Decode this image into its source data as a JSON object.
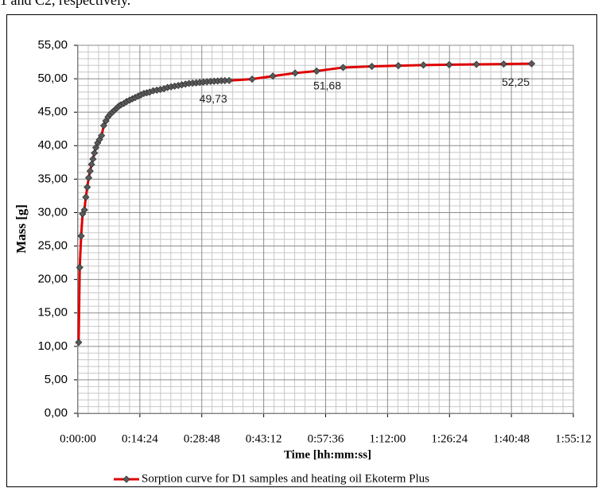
{
  "page_text": "1 and C2, respectively.",
  "chart_data": {
    "type": "line",
    "ylabel": "Mass [g]",
    "xlabel": "Time [hh:mm:ss]",
    "xlim": [
      0,
      6912
    ],
    "xticks": [
      {
        "value": 0,
        "label": "0:00:00"
      },
      {
        "value": 864,
        "label": "0:14:24"
      },
      {
        "value": 1728,
        "label": "0:28:48"
      },
      {
        "value": 2592,
        "label": "0:43:12"
      },
      {
        "value": 3456,
        "label": "0:57:36"
      },
      {
        "value": 4320,
        "label": "1:12:00"
      },
      {
        "value": 5184,
        "label": "1:26:24"
      },
      {
        "value": 6048,
        "label": "1:40:48"
      },
      {
        "value": 6912,
        "label": "1:55:12"
      }
    ],
    "ylim": [
      0,
      55
    ],
    "yticks": [
      {
        "value": 0,
        "label": "0,00"
      },
      {
        "value": 5,
        "label": "5,00"
      },
      {
        "value": 10,
        "label": "10,00"
      },
      {
        "value": 15,
        "label": "15,00"
      },
      {
        "value": 20,
        "label": "20,00"
      },
      {
        "value": 25,
        "label": "25,00"
      },
      {
        "value": 30,
        "label": "30,00"
      },
      {
        "value": 35,
        "label": "35,00"
      },
      {
        "value": 40,
        "label": "40,00"
      },
      {
        "value": 45,
        "label": "45,00"
      },
      {
        "value": 50,
        "label": "50,00"
      },
      {
        "value": 55,
        "label": "55,00"
      }
    ],
    "grid": true,
    "legend": "bottom",
    "x": [
      10,
      25,
      45,
      65,
      90,
      110,
      130,
      150,
      170,
      190,
      210,
      230,
      250,
      275,
      300,
      330,
      360,
      390,
      420,
      450,
      480,
      510,
      540,
      570,
      600,
      640,
      680,
      720,
      760,
      800,
      840,
      880,
      920,
      960,
      1000,
      1050,
      1100,
      1150,
      1200,
      1250,
      1300,
      1350,
      1400,
      1450,
      1500,
      1550,
      1600,
      1650,
      1700,
      1750,
      1800,
      1850,
      1900,
      1950,
      2000,
      2050,
      2110,
      2430,
      2720,
      3030,
      3330,
      3700,
      4100,
      4470,
      4820,
      5180,
      5560,
      5940,
      6330
    ],
    "series": [
      {
        "name": "Sorption curve for D1 samples and heating oil Ekoterm Plus",
        "color": "#e00000",
        "marker_color": "#5a5a5a",
        "values": [
          10.6,
          21.8,
          26.5,
          29.8,
          30.4,
          32.3,
          33.8,
          35.2,
          36.2,
          37.2,
          38.0,
          38.9,
          39.7,
          40.4,
          40.9,
          41.5,
          43.0,
          43.7,
          44.3,
          44.7,
          45.0,
          45.3,
          45.6,
          45.9,
          46.1,
          46.3,
          46.6,
          46.8,
          47.0,
          47.2,
          47.4,
          47.6,
          47.8,
          47.9,
          48.0,
          48.2,
          48.3,
          48.4,
          48.5,
          48.7,
          48.8,
          48.9,
          49.0,
          49.1,
          49.2,
          49.3,
          49.35,
          49.4,
          49.45,
          49.5,
          49.55,
          49.6,
          49.63,
          49.66,
          49.7,
          49.72,
          49.73,
          49.95,
          50.4,
          50.85,
          51.15,
          51.68,
          51.85,
          51.95,
          52.05,
          52.1,
          52.15,
          52.2,
          52.25
        ],
        "value_labels": [
          null,
          null,
          null,
          null,
          null,
          null,
          null,
          null,
          null,
          null,
          null,
          null,
          null,
          null,
          null,
          null,
          null,
          null,
          null,
          null,
          null,
          null,
          null,
          null,
          null,
          null,
          null,
          null,
          null,
          null,
          null,
          null,
          null,
          null,
          null,
          null,
          null,
          null,
          null,
          null,
          null,
          null,
          null,
          null,
          null,
          null,
          null,
          null,
          null,
          null,
          null,
          null,
          null,
          null,
          null,
          null,
          "49,73",
          null,
          null,
          null,
          null,
          "51,68",
          null,
          null,
          null,
          null,
          null,
          null,
          "52,25"
        ]
      }
    ]
  }
}
